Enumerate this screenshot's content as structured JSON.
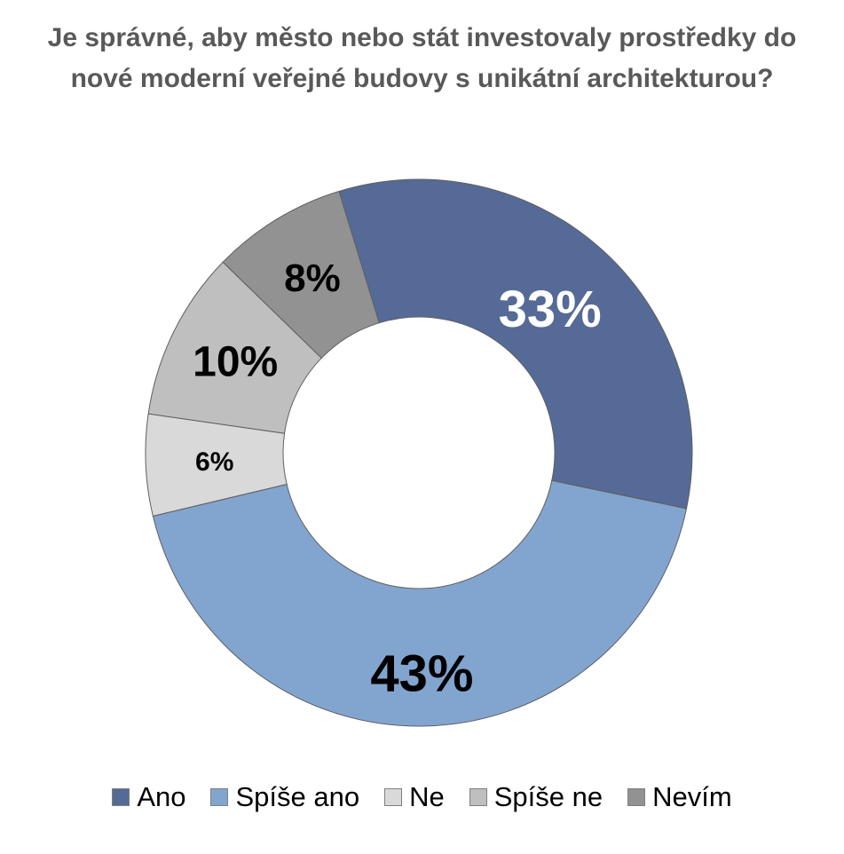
{
  "chart_data": {
    "type": "pie",
    "title_lines": [
      "Je správné, aby město nebo stát investovaly prostředky do",
      "nové moderní veřejné budovy s unikátní architekturou?"
    ],
    "categories": [
      "Ano",
      "Spíše ano",
      "Ne",
      "Spíše ne",
      "Nevím"
    ],
    "values": [
      33,
      43,
      6,
      10,
      8
    ],
    "data_labels": [
      "33%",
      "43%",
      "6%",
      "10%",
      "8%"
    ],
    "colors": [
      "#556a96",
      "#82a5d0",
      "#d9d9d9",
      "#bfbfbf",
      "#929292"
    ],
    "label_colors": [
      "#ffffff",
      "#000000",
      "#000000",
      "#000000",
      "#000000"
    ],
    "donut": true,
    "legend_position": "bottom"
  }
}
